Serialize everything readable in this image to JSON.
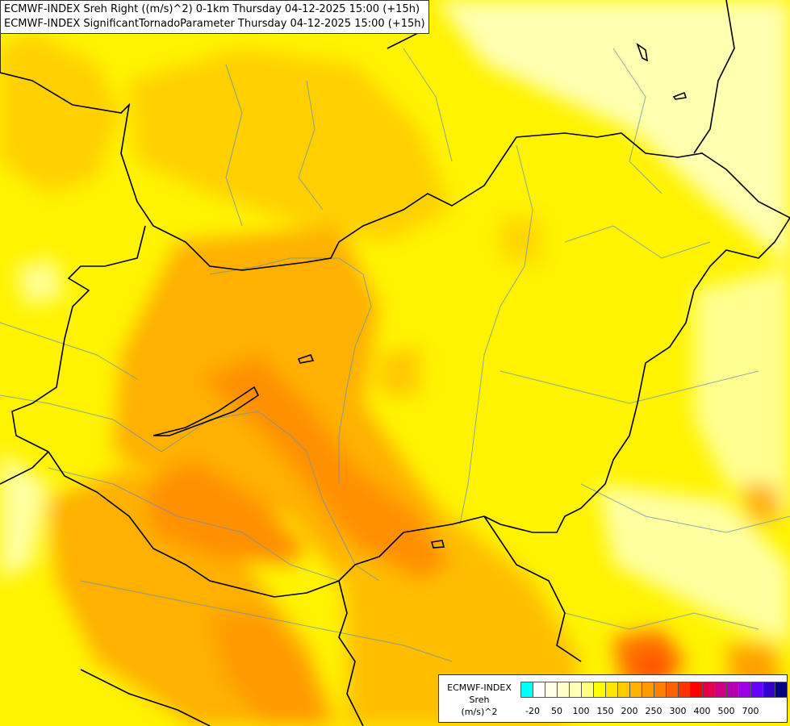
{
  "header": {
    "line1": "ECMWF-INDEX Sreh Right ((m/s)^2) 0-1km Thursday 04-12-2025 15:00 (+15h)",
    "line2": "ECMWF-INDEX SignificantTornadoParameter Thursday 04-12-2025 15:00 (+15h)"
  },
  "legend": {
    "model": "ECMWF-INDEX",
    "variable": "Sreh",
    "unit": "(m/s)^2",
    "colors": [
      "#00ffff",
      "#ffffff",
      "#ffffe6",
      "#ffffcc",
      "#ffffb3",
      "#ffff80",
      "#ffff00",
      "#ffe600",
      "#ffcc00",
      "#ffb300",
      "#ff9900",
      "#ff8000",
      "#ff6000",
      "#ff3300",
      "#ff0000",
      "#e6004c",
      "#cc0080",
      "#b300b3",
      "#9900e6",
      "#6600ff",
      "#3300cc",
      "#000080"
    ],
    "ticks": [
      "-20",
      "50",
      "100",
      "150",
      "200",
      "250",
      "300",
      "400",
      "500",
      "700"
    ]
  },
  "map": {
    "background": "#fff700",
    "field_colors": {
      "light": "#ffffb0",
      "pale": "#ffff80",
      "yellow": "#fff000",
      "gold": "#ffd200",
      "orange": "#ffb000",
      "dark_orange": "#ff9500",
      "deep_orange": "#ff7a00",
      "red_orange": "#ff5a00"
    }
  }
}
